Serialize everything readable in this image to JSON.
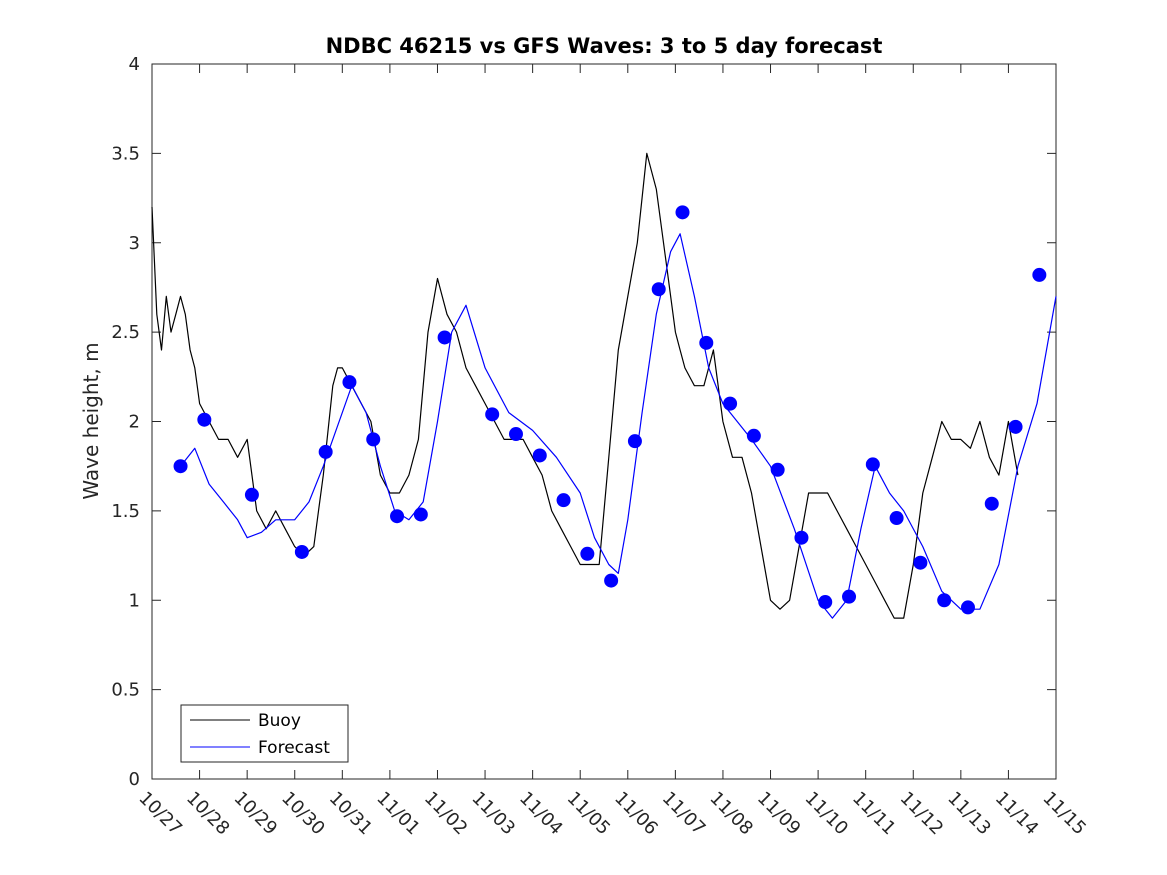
{
  "chart_data": {
    "type": "line",
    "title": "NDBC 46215 vs GFS Waves: 3 to 5 day forecast",
    "xlabel": "",
    "ylabel": "Wave height, m",
    "xlim": [
      0,
      19
    ],
    "ylim": [
      0,
      4
    ],
    "yticks": [
      0,
      0.5,
      1,
      1.5,
      2,
      2.5,
      3,
      3.5,
      4
    ],
    "ytick_labels": [
      "0",
      "0.5",
      "1",
      "1.5",
      "2",
      "2.5",
      "3",
      "3.5",
      "4"
    ],
    "xticks": [
      0,
      1,
      2,
      3,
      4,
      5,
      6,
      7,
      8,
      9,
      10,
      11,
      12,
      13,
      14,
      15,
      16,
      17,
      18,
      19
    ],
    "xtick_labels": [
      "10/27",
      "10/28",
      "10/29",
      "10/30",
      "10/31",
      "11/01",
      "11/02",
      "11/03",
      "11/04",
      "11/05",
      "11/06",
      "11/07",
      "11/08",
      "11/09",
      "11/10",
      "11/11",
      "11/12",
      "11/13",
      "11/14",
      "11/15"
    ],
    "legend": {
      "location": "bottom-left",
      "entries": [
        "Buoy",
        "Forecast"
      ]
    },
    "series": [
      {
        "name": "Buoy",
        "color": "#000000",
        "x": [
          0.0,
          0.1,
          0.2,
          0.3,
          0.4,
          0.5,
          0.6,
          0.7,
          0.8,
          0.9,
          1.0,
          1.2,
          1.4,
          1.6,
          1.8,
          2.0,
          2.2,
          2.4,
          2.6,
          2.8,
          3.0,
          3.2,
          3.4,
          3.5,
          3.6,
          3.8,
          3.9,
          4.0,
          4.2,
          4.4,
          4.6,
          4.8,
          5.0,
          5.2,
          5.4,
          5.6,
          5.8,
          6.0,
          6.2,
          6.4,
          6.6,
          6.8,
          7.0,
          7.2,
          7.4,
          7.6,
          7.8,
          8.0,
          8.2,
          8.4,
          8.6,
          8.8,
          9.0,
          9.2,
          9.4,
          9.6,
          9.8,
          10.0,
          10.2,
          10.4,
          10.6,
          10.8,
          11.0,
          11.1,
          11.2,
          11.4,
          11.6,
          11.8,
          12.0,
          12.2,
          12.4,
          12.6,
          12.8,
          13.0,
          13.2,
          13.4,
          13.6,
          13.8,
          14.0,
          14.2,
          14.4,
          14.6,
          14.8,
          15.0,
          15.2,
          15.4,
          15.6,
          15.8,
          16.0,
          16.2,
          16.4,
          16.6,
          16.8,
          17.0,
          17.2,
          17.4,
          17.6,
          17.8,
          18.0,
          18.2
        ],
        "values": [
          3.2,
          2.6,
          2.4,
          2.7,
          2.5,
          2.6,
          2.7,
          2.6,
          2.4,
          2.3,
          2.1,
          2.0,
          1.9,
          1.9,
          1.8,
          1.9,
          1.5,
          1.4,
          1.5,
          1.4,
          1.3,
          1.25,
          1.3,
          1.5,
          1.7,
          2.2,
          2.3,
          2.3,
          2.2,
          2.1,
          2.0,
          1.7,
          1.6,
          1.6,
          1.7,
          1.9,
          2.5,
          2.8,
          2.6,
          2.5,
          2.3,
          2.2,
          2.1,
          2.0,
          1.9,
          1.9,
          1.9,
          1.8,
          1.7,
          1.5,
          1.4,
          1.3,
          1.2,
          1.2,
          1.2,
          1.8,
          2.4,
          2.7,
          3.0,
          3.5,
          3.3,
          2.9,
          2.5,
          2.4,
          2.3,
          2.2,
          2.2,
          2.4,
          2.0,
          1.8,
          1.8,
          1.6,
          1.3,
          1.0,
          0.95,
          1.0,
          1.3,
          1.6,
          1.6,
          1.6,
          1.5,
          1.4,
          1.3,
          1.2,
          1.1,
          1.0,
          0.9,
          0.9,
          1.2,
          1.6,
          1.8,
          2.0,
          1.9,
          1.9,
          1.85,
          2.0,
          1.8,
          1.7,
          2.0,
          1.7
        ]
      },
      {
        "name": "Forecast",
        "color": "#0000ff",
        "x": [
          0.6,
          0.9,
          1.2,
          1.5,
          1.8,
          2.0,
          2.3,
          2.6,
          3.0,
          3.3,
          3.6,
          4.0,
          4.2,
          4.5,
          4.8,
          5.1,
          5.4,
          5.7,
          6.0,
          6.3,
          6.6,
          7.0,
          7.5,
          8.0,
          8.5,
          9.0,
          9.3,
          9.6,
          9.8,
          10.0,
          10.3,
          10.6,
          10.9,
          11.1,
          11.4,
          11.7,
          12.0,
          12.3,
          12.6,
          13.0,
          13.5,
          14.0,
          14.3,
          14.6,
          14.9,
          15.2,
          15.5,
          15.8,
          16.2,
          16.6,
          17.0,
          17.4,
          17.8,
          18.2,
          18.6,
          19.0
        ],
        "values": [
          1.75,
          1.85,
          1.65,
          1.55,
          1.45,
          1.35,
          1.38,
          1.45,
          1.45,
          1.55,
          1.75,
          2.05,
          2.2,
          2.05,
          1.75,
          1.5,
          1.45,
          1.55,
          2.0,
          2.5,
          2.65,
          2.3,
          2.05,
          1.95,
          1.8,
          1.6,
          1.35,
          1.2,
          1.15,
          1.45,
          2.05,
          2.6,
          2.95,
          3.05,
          2.7,
          2.3,
          2.1,
          2.0,
          1.9,
          1.75,
          1.4,
          1.0,
          0.9,
          1.0,
          1.4,
          1.75,
          1.6,
          1.5,
          1.3,
          1.05,
          0.95,
          0.95,
          1.2,
          1.75,
          2.1,
          2.7
        ]
      },
      {
        "name": "Forecast dots",
        "color": "#0000ff",
        "x": [
          0.6,
          1.1,
          2.1,
          3.15,
          3.65,
          4.15,
          4.65,
          5.15,
          5.65,
          6.15,
          7.15,
          7.65,
          8.15,
          8.65,
          9.15,
          9.65,
          10.15,
          10.65,
          11.15,
          11.65,
          12.15,
          12.65,
          13.15,
          13.65,
          14.15,
          14.65,
          15.15,
          15.65,
          16.15,
          16.65,
          17.15,
          17.65,
          18.15,
          18.65
        ],
        "values": [
          1.75,
          2.01,
          1.59,
          1.27,
          1.83,
          2.22,
          1.9,
          1.47,
          1.48,
          2.47,
          2.04,
          1.93,
          1.81,
          1.56,
          1.26,
          1.11,
          1.89,
          2.74,
          3.17,
          2.44,
          2.1,
          1.92,
          1.73,
          1.35,
          0.99,
          1.02,
          1.76,
          1.46,
          1.21,
          1.0,
          0.96,
          1.54,
          1.97,
          2.82
        ]
      }
    ]
  }
}
